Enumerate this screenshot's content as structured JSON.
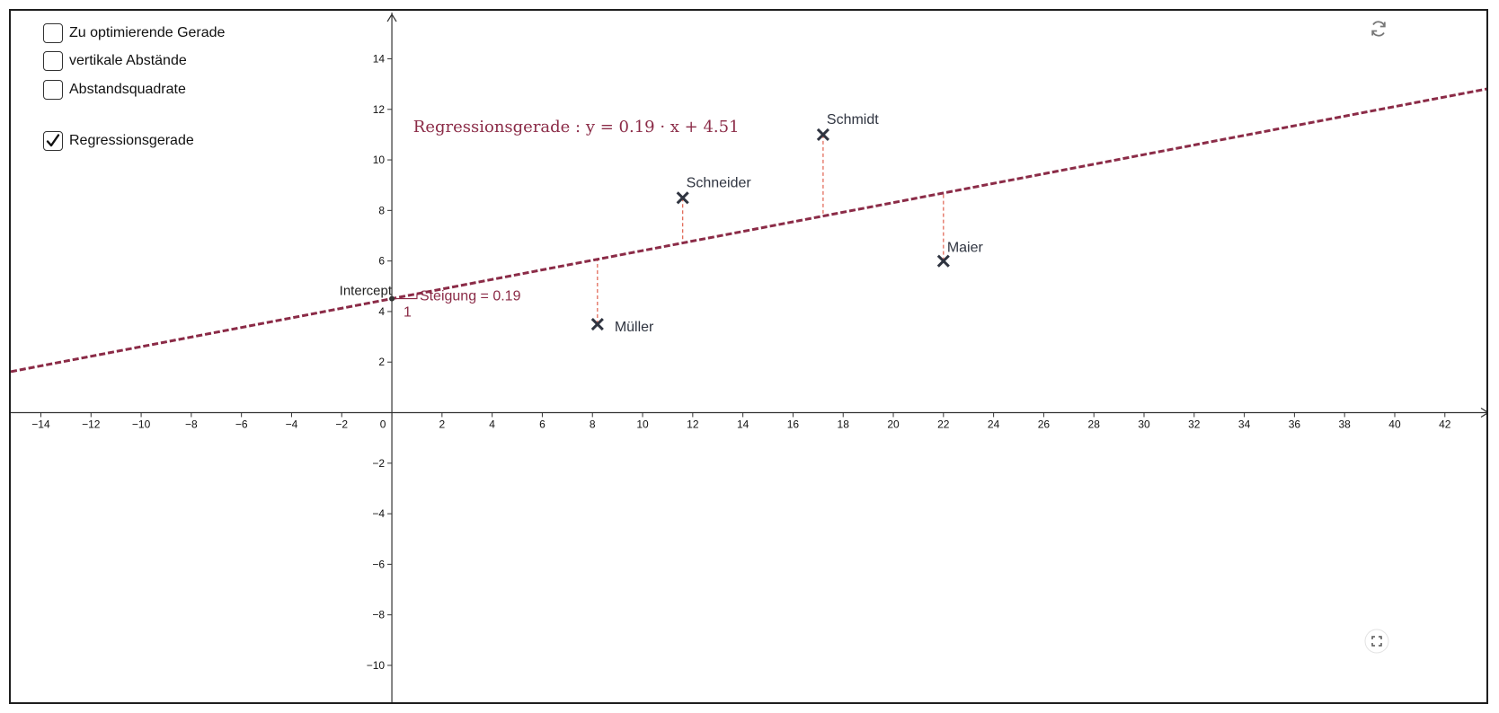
{
  "checkboxes": [
    {
      "label": "Zu optimierende Gerade",
      "checked": false
    },
    {
      "label": "vertikale Abstände",
      "checked": false
    },
    {
      "label": "Abstandsquadrate",
      "checked": false
    },
    {
      "label": "Regressionsgerade",
      "checked": true
    }
  ],
  "chart_data": {
    "type": "scatter",
    "xlim": [
      -15.2,
      43.8
    ],
    "ylim": [
      -11.6,
      15.9
    ],
    "x_ticks": [
      -14,
      -12,
      -10,
      -8,
      -6,
      -4,
      -2,
      0,
      2,
      4,
      6,
      8,
      10,
      12,
      14,
      16,
      18,
      20,
      22,
      24,
      26,
      28,
      30,
      32,
      34,
      36,
      38,
      40,
      42
    ],
    "y_ticks": [
      -10,
      -8,
      -6,
      -4,
      -2,
      2,
      4,
      6,
      8,
      10,
      12,
      14
    ],
    "points": [
      {
        "name": "Müller",
        "x": 8.2,
        "y": 3.5
      },
      {
        "name": "Schneider",
        "x": 11.6,
        "y": 8.5
      },
      {
        "name": "Schmidt",
        "x": 17.2,
        "y": 11.0
      },
      {
        "name": "Maier",
        "x": 22.0,
        "y": 6.0
      }
    ],
    "regression": {
      "slope": 0.19,
      "intercept": 4.51,
      "equation_label": "Regressionsgerade :  y = 0.19 · x + 4.51",
      "slope_label": "Steigung = 0.19",
      "slope_run_label": "1",
      "intercept_label": "Intercept"
    },
    "colors": {
      "line": "#8b2b47",
      "residual": "#e0604e",
      "point": "#2f3440",
      "axis": "#333333"
    },
    "grid": false
  },
  "icons": {
    "top_right": "refresh-icon",
    "bottom_right": "fullscreen-icon"
  }
}
